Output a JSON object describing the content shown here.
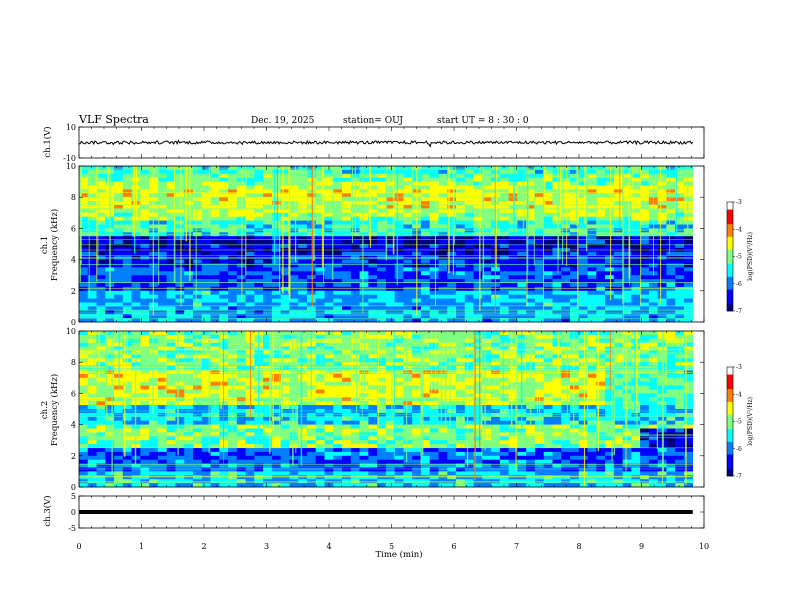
{
  "header": {
    "title": "VLF Spectra",
    "date": "Dec. 19, 2025",
    "station": "station= OUJ",
    "start": "start  UT =  8 : 30 : 0"
  },
  "chart_data": {
    "type": "heatmap",
    "xlabel": "Time (min)",
    "xlim": [
      0,
      10
    ],
    "xticks": [
      "0",
      "1",
      "2",
      "3",
      "4",
      "5",
      "6",
      "7",
      "8",
      "9",
      "10"
    ],
    "data_end_min": 9.82,
    "panels": [
      {
        "id": "ch1-waveform",
        "type": "line",
        "ylabel": "ch.1(V)",
        "ylim": [
          -10,
          10
        ],
        "yticks": [
          "10",
          "-10"
        ],
        "mean_level": 0,
        "amplitude": 1
      },
      {
        "id": "ch1-spectrogram",
        "type": "heatmap",
        "ylabel_line1": "ch.1",
        "ylabel_line2": "Frequency (kHz)",
        "ylim": [
          0,
          10
        ],
        "yticks": [
          "0",
          "2",
          "4",
          "6",
          "8",
          "10"
        ]
      },
      {
        "id": "ch2-spectrogram",
        "type": "heatmap",
        "ylabel_line1": "ch.2",
        "ylabel_line2": "Frequency (kHz)",
        "ylim": [
          0,
          10
        ],
        "yticks": [
          "0",
          "2",
          "4",
          "6",
          "8",
          "10"
        ]
      },
      {
        "id": "ch3-waveform",
        "type": "line",
        "ylabel": "ch.3(V)",
        "ylim": [
          -5,
          5
        ],
        "yticks": [
          "5",
          "0",
          "-5"
        ],
        "mean_level": 0,
        "amplitude": 0
      }
    ],
    "colorbar": {
      "label": "log(PSD)(V²/Hz)",
      "range": [
        -7,
        -3
      ],
      "ticks": [
        "-3",
        "-4",
        "-5",
        "-6",
        "-7"
      ],
      "colors": [
        "#00007f",
        "#0000ff",
        "#0080ff",
        "#00ffff",
        "#80ff80",
        "#ffff00",
        "#ff8000",
        "#ff0000",
        "#ffffff"
      ]
    }
  }
}
